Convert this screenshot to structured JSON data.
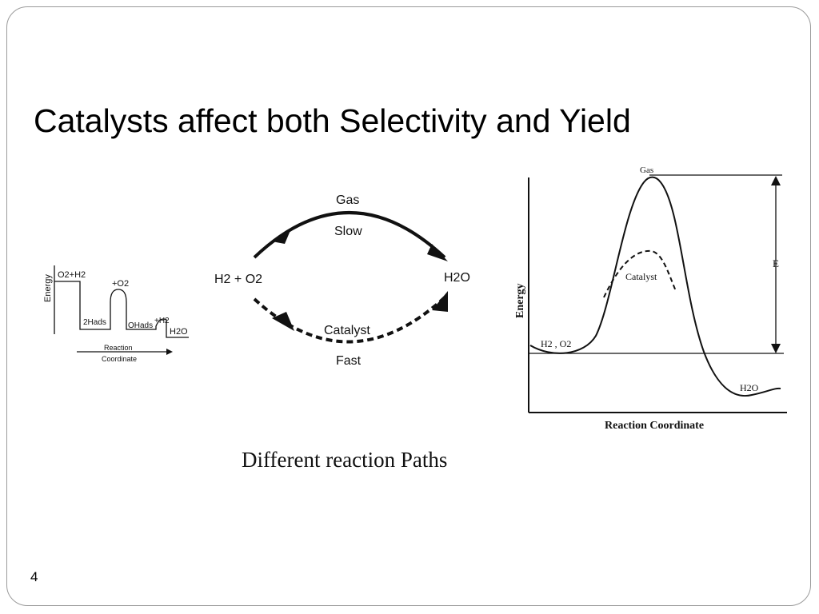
{
  "slide": {
    "title": "Catalysts affect both Selectivity and Yield",
    "caption": "Different reaction Paths",
    "page_number": "4"
  },
  "diagram_small": {
    "y_label": "Energy",
    "start": "O2+H2",
    "step_o2": "+O2",
    "step_2h": "2Hads",
    "step_oh": "OHads",
    "step_h2": "+H2",
    "product": "H2O",
    "x_label_line1": "Reaction",
    "x_label_line2": "Coordinate"
  },
  "diagram_paths": {
    "reactant": "H2 + O2",
    "product": "H2O",
    "upper_label": "Gas",
    "upper_speed": "Slow",
    "lower_label": "Catalyst",
    "lower_speed": "Fast"
  },
  "diagram_energy": {
    "y_label": "Energy",
    "x_label": "Reaction Coordinate",
    "peak_label": "Gas",
    "catalyst_label": "Catalyst",
    "reactant_label": "H2 , O2",
    "product_label": "H2O",
    "barrier_label": "E"
  }
}
